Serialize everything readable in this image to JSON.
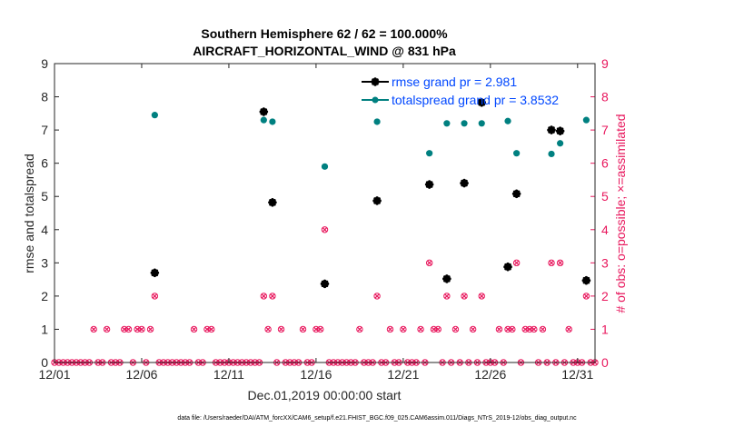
{
  "chart_data": {
    "type": "scatter",
    "title_line1": "Southern Hemisphere 62 / 62 = 100.000%",
    "title_line2": "AIRCRAFT_HORIZONTAL_WIND @ 831 hPa",
    "xlabel": "Dec.01,2019 00:00:00 start",
    "ylabel_left": "rmse and totalspread",
    "ylabel_right": "# of obs: o=possible; ×=assimilated",
    "xlim": [
      1,
      32
    ],
    "ylim": [
      0,
      9
    ],
    "x_ticks": [
      1,
      6,
      11,
      16,
      21,
      26,
      31
    ],
    "x_tick_labels": [
      "12/01",
      "12/06",
      "12/11",
      "12/16",
      "12/21",
      "12/26",
      "12/31"
    ],
    "y_ticks": [
      0,
      1,
      2,
      3,
      4,
      5,
      6,
      7,
      8,
      9
    ],
    "y_tick_labels": [
      "0",
      "1",
      "2",
      "3",
      "4",
      "5",
      "6",
      "7",
      "8",
      "9"
    ],
    "y2_tick_labels": [
      "0",
      "1",
      "2",
      "3",
      "4",
      "5",
      "6",
      "7",
      "8",
      "9"
    ],
    "colors": {
      "rmse": "#000000",
      "spread": "#008080",
      "obs": "#e8175d",
      "legend_text": "#0047ff"
    },
    "series": [
      {
        "name": "rmse grand pr = 2.981",
        "key": "rmse",
        "x": [
          6.75,
          13.0,
          13.5,
          16.5,
          19.5,
          22.5,
          23.5,
          24.5,
          25.5,
          27.0,
          27.5,
          29.5,
          30.0,
          31.5
        ],
        "y": [
          2.7,
          7.55,
          4.82,
          2.37,
          4.87,
          5.36,
          2.52,
          5.4,
          7.83,
          2.88,
          5.08,
          7.0,
          6.97,
          2.47
        ]
      },
      {
        "name": "totalspread grand pr = 3.8532",
        "key": "spread",
        "x": [
          6.75,
          13.0,
          13.5,
          16.5,
          19.5,
          22.5,
          23.5,
          24.5,
          25.5,
          27.0,
          27.5,
          29.5,
          30.0,
          31.5
        ],
        "y": [
          7.45,
          7.3,
          7.25,
          5.9,
          7.25,
          6.3,
          7.2,
          7.2,
          7.2,
          7.27,
          6.3,
          6.28,
          6.6,
          7.3
        ]
      },
      {
        "name": "obs",
        "key": "obs",
        "nonzero_x": [
          3.25,
          4.0,
          5.0,
          5.25,
          5.75,
          6.0,
          6.5,
          6.75,
          9.0,
          9.75,
          10.0,
          13.0,
          13.25,
          13.5,
          14.0,
          15.25,
          16.0,
          16.25,
          16.5,
          18.5,
          19.5,
          20.25,
          21.0,
          22.0,
          22.5,
          22.75,
          23.0,
          23.5,
          24.0,
          24.5,
          25.0,
          25.5,
          26.5,
          27.0,
          27.25,
          27.5,
          28.0,
          28.25,
          28.5,
          29.0,
          29.5,
          30.0,
          30.5,
          31.5
        ],
        "nonzero_y": [
          1,
          1,
          1,
          1,
          1,
          1,
          1,
          2,
          1,
          1,
          1,
          2,
          1,
          2,
          1,
          1,
          1,
          1,
          4,
          1,
          2,
          1,
          1,
          1,
          3,
          1,
          1,
          2,
          1,
          2,
          1,
          2,
          1,
          1,
          1,
          3,
          1,
          1,
          1,
          1,
          3,
          3,
          1,
          2
        ]
      }
    ],
    "legend": [
      {
        "label": "rmse grand pr = 2.981",
        "key": "rmse"
      },
      {
        "label": "totalspread grand pr = 3.8532",
        "key": "spread"
      }
    ],
    "legend_position": "top-right",
    "footer": "data file: /Users/raeder/DAI/ATM_forcXX/CAM6_setup/f.e21.FHIST_BGC.f09_025.CAM6assim.011/Diags_NTrS_2019-12/obs_diag_output.nc"
  }
}
